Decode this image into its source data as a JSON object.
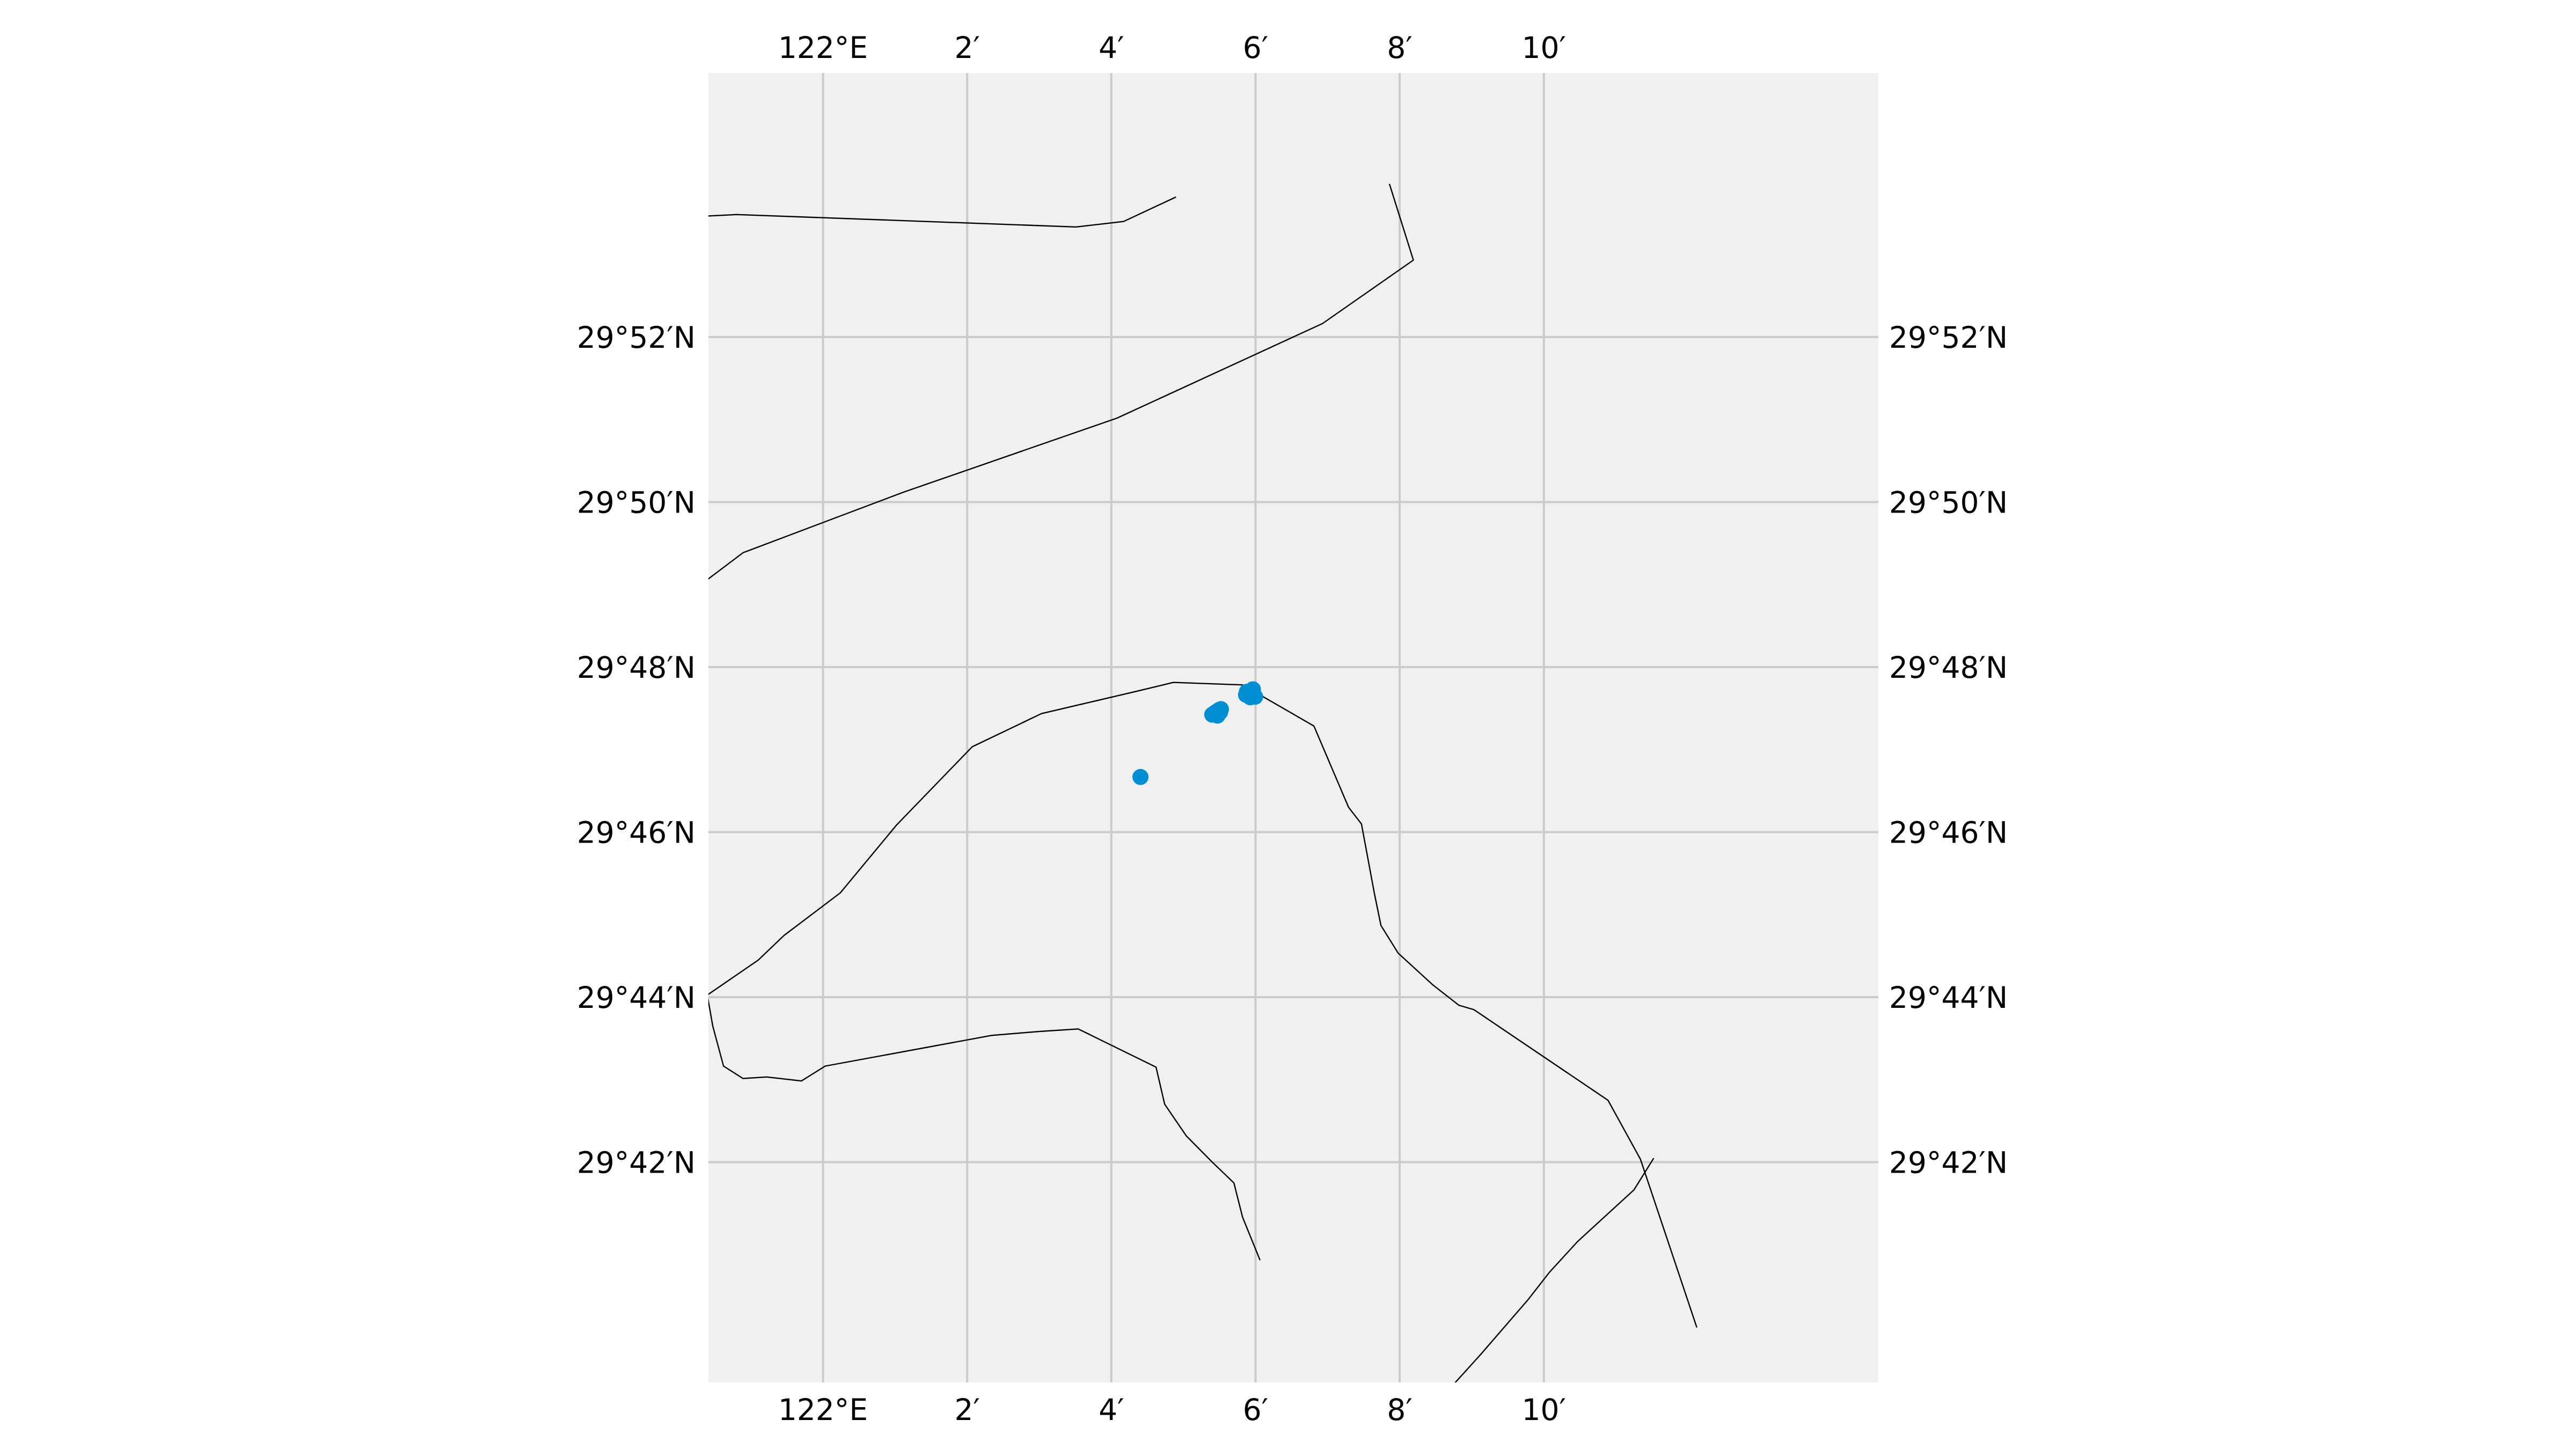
{
  "map": {
    "background_color": "#f0f0f0",
    "grid_color": "#cbcbcb",
    "coast_color": "#000000",
    "point_color": "#008fd5",
    "extent": {
      "lon_min": 121.9735,
      "lon_max": 122.244,
      "lat_min": 29.6555,
      "lat_max": 29.92
    },
    "lon_ticks": [
      {
        "lon": 122.0,
        "label": "122°E"
      },
      {
        "lon": 122.0333333,
        "label": "2′"
      },
      {
        "lon": 122.0666667,
        "label": "4′"
      },
      {
        "lon": 122.1,
        "label": "6′"
      },
      {
        "lon": 122.1333333,
        "label": "8′"
      },
      {
        "lon": 122.1666667,
        "label": "10′"
      }
    ],
    "lat_ticks": [
      {
        "lat": 29.8666667,
        "label": "29°52′N"
      },
      {
        "lat": 29.8333333,
        "label": "29°50′N"
      },
      {
        "lat": 29.8,
        "label": "29°48′N"
      },
      {
        "lat": 29.7666667,
        "label": "29°46′N"
      },
      {
        "lat": 29.7333333,
        "label": "29°44′N"
      },
      {
        "lat": 29.7,
        "label": "29°42′N"
      }
    ],
    "coastlines": [
      {
        "name": "coast-top-short",
        "points": [
          [
            121.973,
            29.8911
          ],
          [
            121.98,
            29.8914
          ],
          [
            122.0585,
            29.8889
          ],
          [
            122.0695,
            29.89
          ],
          [
            122.0815,
            29.8949
          ]
        ]
      },
      {
        "name": "coast-top-long",
        "points": [
          [
            121.973,
            29.8175
          ],
          [
            121.9815,
            29.8231
          ],
          [
            122.0185,
            29.8353
          ],
          [
            122.068,
            29.8503
          ],
          [
            122.1155,
            29.8694
          ],
          [
            122.1365,
            29.8822
          ],
          [
            122.131,
            29.8975
          ]
        ]
      },
      {
        "name": "coast-island",
        "points": [
          [
            121.973,
            29.7336
          ],
          [
            121.985,
            29.7408
          ],
          [
            121.991,
            29.7458
          ],
          [
            122.004,
            29.7544
          ],
          [
            122.017,
            29.7681
          ],
          [
            122.0345,
            29.7839
          ],
          [
            122.0505,
            29.7906
          ],
          [
            122.072,
            29.795
          ],
          [
            122.081,
            29.7969
          ],
          [
            122.097,
            29.7964
          ],
          [
            122.1135,
            29.7881
          ],
          [
            122.1215,
            29.7717
          ],
          [
            122.1245,
            29.7683
          ],
          [
            122.1275,
            29.7542
          ],
          [
            122.129,
            29.7478
          ],
          [
            122.133,
            29.7422
          ],
          [
            122.141,
            29.7358
          ],
          [
            122.147,
            29.7317
          ],
          [
            122.1505,
            29.7308
          ],
          [
            122.1815,
            29.7125
          ],
          [
            122.189,
            29.7006
          ],
          [
            122.202,
            29.6667
          ]
        ]
      },
      {
        "name": "coast-south-loop",
        "points": [
          [
            121.973,
            29.735
          ],
          [
            121.9745,
            29.7275
          ],
          [
            121.977,
            29.7194
          ],
          [
            121.9815,
            29.7169
          ],
          [
            121.987,
            29.7172
          ],
          [
            121.995,
            29.7164
          ],
          [
            122.0005,
            29.7194
          ],
          [
            122.039,
            29.7256
          ],
          [
            122.05,
            29.7264
          ],
          [
            122.059,
            29.7269
          ],
          [
            122.077,
            29.7192
          ],
          [
            122.079,
            29.7117
          ],
          [
            122.084,
            29.7053
          ],
          [
            122.09,
            29.7
          ],
          [
            122.095,
            29.6958
          ],
          [
            122.097,
            29.6889
          ],
          [
            122.101,
            29.6803
          ]
        ]
      },
      {
        "name": "coast-bottom-right",
        "points": [
          [
            122.1405,
            29.65
          ],
          [
            122.152,
            29.6611
          ],
          [
            122.163,
            29.6722
          ],
          [
            122.168,
            29.6778
          ],
          [
            122.1745,
            29.684
          ],
          [
            122.1875,
            29.6944
          ],
          [
            122.192,
            29.7007
          ]
        ]
      }
    ],
    "points": [
      {
        "lon": 122.0734,
        "lat": 29.7778
      },
      {
        "lon": 122.09,
        "lat": 29.7904
      },
      {
        "lon": 122.0905,
        "lat": 29.7907
      },
      {
        "lon": 122.091,
        "lat": 29.791
      },
      {
        "lon": 122.0915,
        "lat": 29.7913
      },
      {
        "lon": 122.0918,
        "lat": 29.7909
      },
      {
        "lon": 122.092,
        "lat": 29.7915
      },
      {
        "lon": 122.0912,
        "lat": 29.7902
      },
      {
        "lon": 122.0978,
        "lat": 29.7944
      },
      {
        "lon": 122.0985,
        "lat": 29.7948
      },
      {
        "lon": 122.099,
        "lat": 29.7951
      },
      {
        "lon": 122.0994,
        "lat": 29.7955
      },
      {
        "lon": 122.0996,
        "lat": 29.7943
      },
      {
        "lon": 122.0999,
        "lat": 29.794
      },
      {
        "lon": 122.0988,
        "lat": 29.7939
      },
      {
        "lon": 122.098,
        "lat": 29.795
      }
    ]
  }
}
